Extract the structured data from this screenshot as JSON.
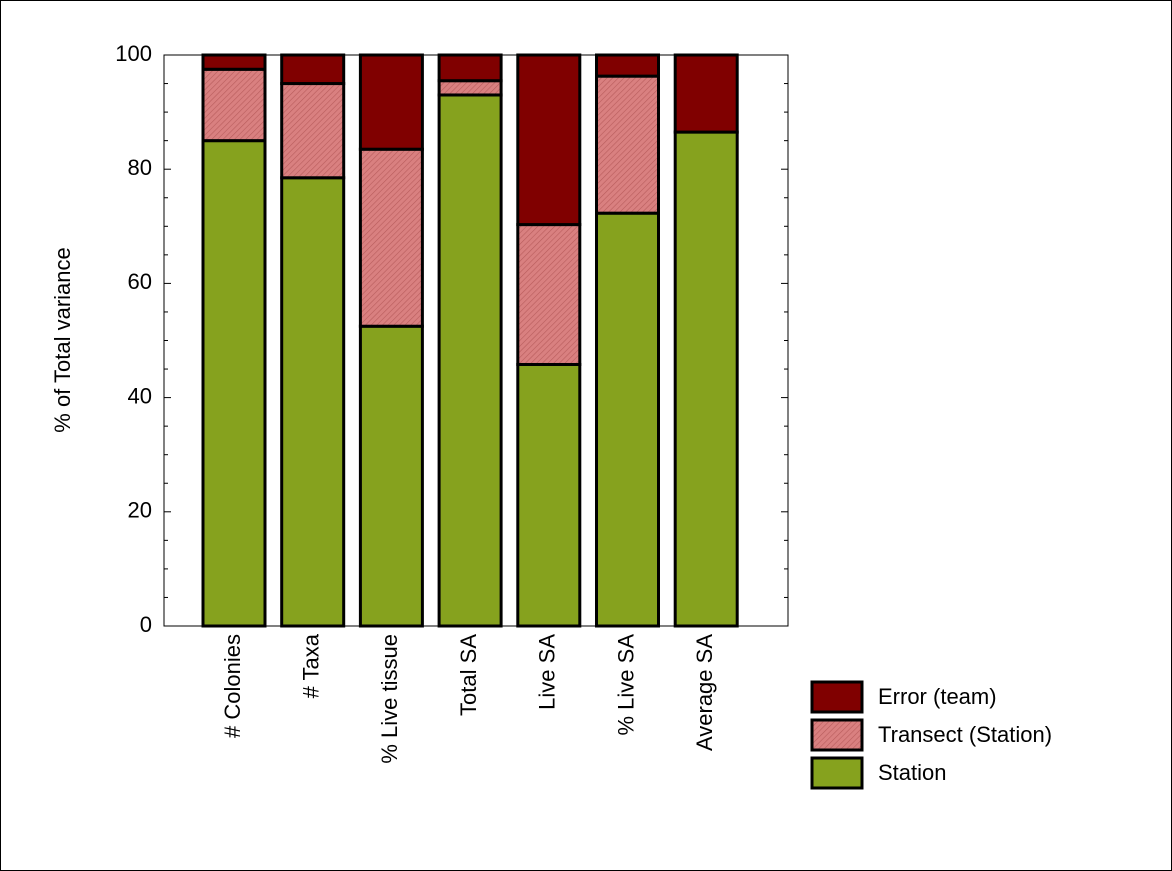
{
  "chart_data": {
    "type": "bar",
    "stacked": true,
    "categories": [
      "# Colonies",
      "# Taxa",
      "% Live tissue",
      "Total SA",
      "Live SA",
      "% Live SA",
      "Average SA"
    ],
    "series": [
      {
        "name": "Station",
        "values": [
          85,
          78.5,
          52.5,
          93,
          45.8,
          72.3,
          86.5
        ],
        "color": "#86a21e",
        "pattern": "none"
      },
      {
        "name": "Transect (Station)",
        "values": [
          12.5,
          16.5,
          31,
          2.5,
          24.5,
          24,
          0
        ],
        "color": "#d98080",
        "pattern": "hatch"
      },
      {
        "name": "Error (team)",
        "values": [
          2.5,
          5,
          16.5,
          4.5,
          29.7,
          3.7,
          13.5
        ],
        "color": "#800000",
        "pattern": "none"
      }
    ],
    "ylabel": "% of Total variance",
    "xlabel": "",
    "ylim": [
      0,
      100
    ],
    "yticks": [
      0,
      20,
      40,
      60,
      80,
      100
    ],
    "grid": false,
    "legend_position": "bottom-right",
    "legend_order": [
      "Error (team)",
      "Transect (Station)",
      "Station"
    ]
  }
}
